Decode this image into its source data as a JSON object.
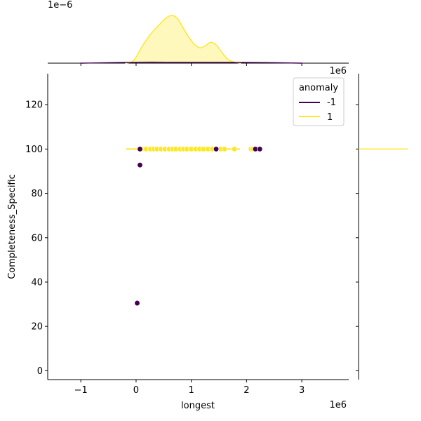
{
  "chart_data": {
    "type": "scatter",
    "title": "",
    "xlabel": "longest",
    "ylabel": "Completeness_Specific",
    "x_offset_label": "1e6",
    "top_offset_label": "1e−6",
    "right_offset_label": "1e6",
    "xlim": [
      -1.6,
      3.85
    ],
    "ylim": [
      -4,
      134
    ],
    "xticks": [
      -1,
      0,
      1,
      2,
      3
    ],
    "xtick_labels": [
      "−1",
      "0",
      "1",
      "2",
      "3"
    ],
    "yticks": [
      0,
      20,
      40,
      60,
      80,
      100,
      120
    ],
    "ytick_labels": [
      "0",
      "20",
      "40",
      "60",
      "80",
      "100",
      "120"
    ],
    "grid": false,
    "legend": {
      "title": "anomaly",
      "placement": "upper right",
      "entries": [
        {
          "label": "-1",
          "color": "#440154"
        },
        {
          "label": "1",
          "color": "#fde725"
        }
      ]
    },
    "series": [
      {
        "name": "1",
        "color": "#fde725",
        "points": [
          [
            0.1,
            100
          ],
          [
            0.18,
            100
          ],
          [
            0.26,
            100
          ],
          [
            0.32,
            100
          ],
          [
            0.38,
            100
          ],
          [
            0.45,
            100
          ],
          [
            0.52,
            100
          ],
          [
            0.6,
            100
          ],
          [
            0.66,
            100
          ],
          [
            0.72,
            100
          ],
          [
            0.8,
            100
          ],
          [
            0.86,
            100
          ],
          [
            0.92,
            100
          ],
          [
            1.0,
            100
          ],
          [
            1.08,
            100
          ],
          [
            1.15,
            100
          ],
          [
            1.22,
            100
          ],
          [
            1.3,
            100
          ],
          [
            1.38,
            100
          ],
          [
            1.46,
            100
          ],
          [
            1.53,
            100
          ],
          [
            1.6,
            100
          ],
          [
            1.78,
            100
          ],
          [
            2.08,
            100
          ],
          [
            2.12,
            100
          ]
        ]
      },
      {
        "name": "-1",
        "color": "#440154",
        "points": [
          [
            0.07,
            100
          ],
          [
            1.45,
            100
          ],
          [
            2.16,
            100
          ],
          [
            2.24,
            100
          ],
          [
            0.07,
            92.8
          ],
          [
            0.02,
            30.5
          ]
        ]
      }
    ],
    "rug_segments": [
      {
        "series": "1",
        "x_start": -0.18,
        "x_end": 1.88,
        "y": 100
      }
    ],
    "top_marginal_density": {
      "series": [
        {
          "name": "1",
          "color": "#fde725",
          "x": [
            -0.2,
            -0.05,
            0.1,
            0.25,
            0.4,
            0.55,
            0.65,
            0.75,
            0.85,
            0.95,
            1.05,
            1.15,
            1.25,
            1.35,
            1.45,
            1.55,
            1.65,
            1.75,
            1.9
          ],
          "density": [
            0.0,
            0.05,
            0.35,
            0.62,
            0.82,
            1.0,
            1.05,
            0.98,
            0.78,
            0.58,
            0.42,
            0.34,
            0.38,
            0.46,
            0.4,
            0.24,
            0.1,
            0.03,
            0.0
          ]
        },
        {
          "name": "-1",
          "color": "#440154",
          "x": [
            -1.0,
            0.0,
            0.8,
            1.5,
            2.2,
            3.0
          ],
          "density": [
            0.0,
            0.02,
            0.02,
            0.02,
            0.015,
            0.0
          ]
        }
      ]
    },
    "right_marginal_density": {
      "series": [
        {
          "name": "1",
          "color": "#fde725",
          "peak_y": 100
        },
        {
          "name": "-1",
          "color": "#440154"
        }
      ]
    }
  }
}
